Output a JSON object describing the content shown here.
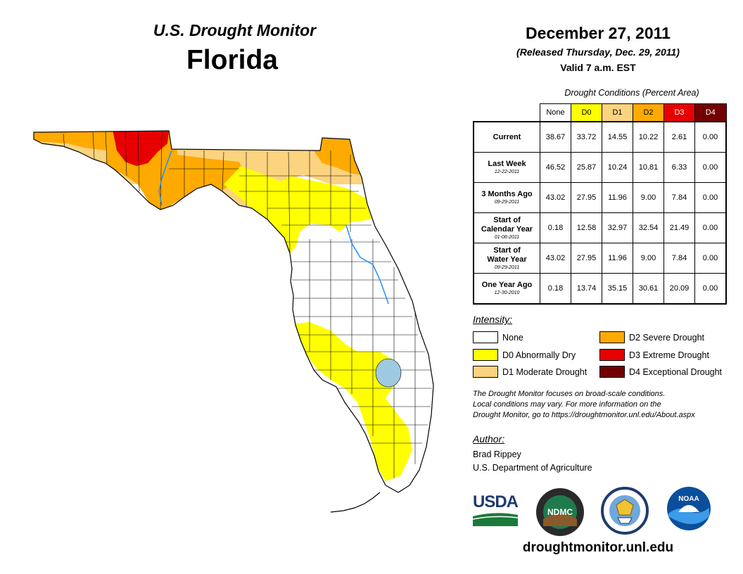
{
  "header": {
    "monitor_title": "U.S. Drought Monitor",
    "state": "Florida",
    "date": "December 27, 2011",
    "released": "(Released Thursday, Dec. 29, 2011)",
    "valid": "Valid 7 a.m. EST"
  },
  "table": {
    "caption": "Drought Conditions (Percent Area)",
    "columns": [
      "None",
      "D0",
      "D1",
      "D2",
      "D3",
      "D4"
    ],
    "rows": [
      {
        "label": "Current",
        "label2": "",
        "date": "",
        "values": [
          "38.67",
          "33.72",
          "14.55",
          "10.22",
          "2.61",
          "0.00"
        ]
      },
      {
        "label": "Last Week",
        "label2": "",
        "date": "12-22-2011",
        "values": [
          "46.52",
          "25.87",
          "10.24",
          "10.81",
          "6.33",
          "0.00"
        ]
      },
      {
        "label": "3 Months Ago",
        "label2": "",
        "date": "09-29-2011",
        "values": [
          "43.02",
          "27.95",
          "11.96",
          "9.00",
          "7.84",
          "0.00"
        ]
      },
      {
        "label": "Start of",
        "label2": "Calendar Year",
        "date": "01-06-2011",
        "values": [
          "0.18",
          "12.58",
          "32.97",
          "32.54",
          "21.49",
          "0.00"
        ]
      },
      {
        "label": "Start of",
        "label2": "Water Year",
        "date": "09-29-2011",
        "values": [
          "43.02",
          "27.95",
          "11.96",
          "9.00",
          "7.84",
          "0.00"
        ]
      },
      {
        "label": "One Year Ago",
        "label2": "",
        "date": "12-30-2010",
        "values": [
          "0.18",
          "13.74",
          "35.15",
          "30.61",
          "20.09",
          "0.00"
        ]
      }
    ]
  },
  "legend": {
    "title": "Intensity:",
    "items": [
      {
        "label": "None",
        "color": "#ffffff"
      },
      {
        "label": "D0 Abnormally Dry",
        "color": "#ffff00"
      },
      {
        "label": "D1 Moderate Drought",
        "color": "#fcd37f"
      },
      {
        "label": "D2 Severe Drought",
        "color": "#ffaa00"
      },
      {
        "label": "D3 Extreme Drought",
        "color": "#e60000"
      },
      {
        "label": "D4 Exceptional Drought",
        "color": "#730000"
      }
    ]
  },
  "note": {
    "line1": "The Drought Monitor focuses on broad-scale conditions.",
    "line2": "Local conditions may vary. For more information on the",
    "line3": "Drought Monitor, go to https://droughtmonitor.unl.edu/About.aspx"
  },
  "author": {
    "heading": "Author:",
    "name": "Brad Rippey",
    "org": "U.S. Department of Agriculture"
  },
  "logos": {
    "usda": "USDA",
    "ndmc": "NDMC",
    "noaa": "NOAA"
  },
  "footer_url": "droughtmonitor.unl.edu"
}
